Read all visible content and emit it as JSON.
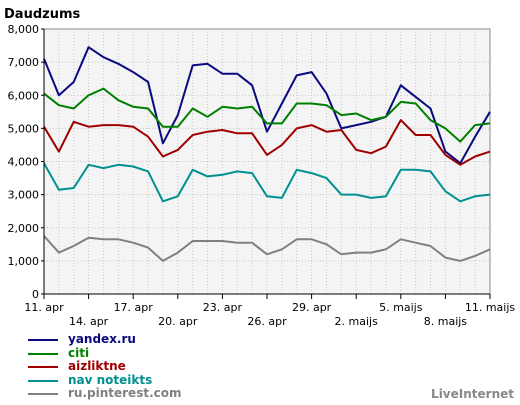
{
  "chart_data": {
    "type": "line",
    "title": "Daudzums",
    "xlabel": "",
    "ylabel": "",
    "ylim": [
      0,
      8000
    ],
    "y_ticks": [
      "0",
      "1,000",
      "2,000",
      "3,000",
      "4,000",
      "5,000",
      "6,000",
      "7,000",
      "8,000"
    ],
    "x_ticks_row1": [
      {
        "i": 0,
        "label": "11. apr"
      },
      {
        "i": 6,
        "label": "17. apr"
      },
      {
        "i": 12,
        "label": "23. apr"
      },
      {
        "i": 18,
        "label": "29. apr"
      },
      {
        "i": 24,
        "label": "5. maijs"
      },
      {
        "i": 30,
        "label": "11. maijs"
      }
    ],
    "x_ticks_row2": [
      {
        "i": 3,
        "label": "14. apr"
      },
      {
        "i": 9,
        "label": "20. apr"
      },
      {
        "i": 15,
        "label": "26. apr"
      },
      {
        "i": 21,
        "label": "2. maijs"
      },
      {
        "i": 27,
        "label": "8. maijs"
      }
    ],
    "grid": true,
    "legend_position": "bottom-left",
    "series": [
      {
        "name": "yandex.ru",
        "color": "#0a0a80",
        "values": [
          7100,
          6000,
          6400,
          7450,
          7150,
          6950,
          6700,
          6400,
          4550,
          5400,
          6900,
          6950,
          6650,
          6650,
          6300,
          4900,
          5750,
          6600,
          6700,
          6050,
          5000,
          5100,
          5200,
          5350,
          6300,
          5950,
          5600,
          4300,
          3950,
          4750,
          5500
        ]
      },
      {
        "name": "citi",
        "color": "#008000",
        "values": [
          6050,
          5700,
          5600,
          6000,
          6200,
          5850,
          5650,
          5600,
          5050,
          5050,
          5600,
          5350,
          5650,
          5600,
          5650,
          5150,
          5150,
          5750,
          5750,
          5700,
          5400,
          5450,
          5250,
          5350,
          5800,
          5750,
          5250,
          5000,
          4600,
          5100,
          5150
        ]
      },
      {
        "name": "aizliktne",
        "color": "#a00000",
        "values": [
          5050,
          4300,
          5200,
          5050,
          5100,
          5100,
          5050,
          4750,
          4150,
          4350,
          4800,
          4900,
          4950,
          4850,
          4850,
          4200,
          4500,
          5000,
          5100,
          4900,
          4950,
          4350,
          4250,
          4450,
          5250,
          4800,
          4800,
          4200,
          3900,
          4150,
          4300
        ]
      },
      {
        "name": "nav noteikts",
        "color": "#009090",
        "values": [
          3950,
          3150,
          3200,
          3900,
          3800,
          3900,
          3850,
          3700,
          2800,
          2950,
          3750,
          3550,
          3600,
          3700,
          3650,
          2950,
          2900,
          3750,
          3650,
          3500,
          3000,
          3000,
          2900,
          2950,
          3750,
          3750,
          3700,
          3100,
          2800,
          2950,
          3000
        ]
      },
      {
        "name": "ru.pinterest.com",
        "color": "#808080",
        "values": [
          1750,
          1250,
          1450,
          1700,
          1650,
          1650,
          1550,
          1400,
          1000,
          1250,
          1600,
          1600,
          1600,
          1550,
          1550,
          1200,
          1350,
          1650,
          1650,
          1500,
          1200,
          1250,
          1250,
          1350,
          1650,
          1550,
          1450,
          1100,
          1000,
          1150,
          1350
        ]
      }
    ]
  },
  "credit": "LiveInternet"
}
